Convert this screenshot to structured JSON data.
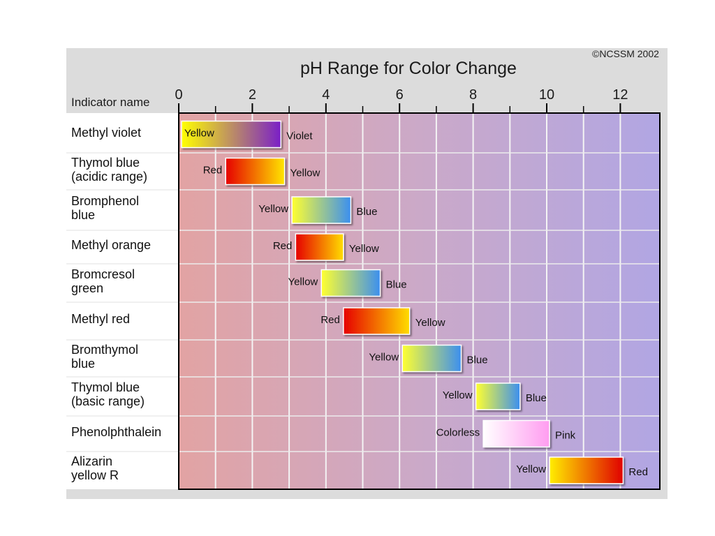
{
  "chart_data": {
    "type": "bar",
    "title": "pH Range for Color Change",
    "copyright": "©NCSSM 2002",
    "ylabel": "Indicator name",
    "xlim": [
      0,
      13
    ],
    "x_ticks": [
      0,
      2,
      4,
      6,
      8,
      10,
      12
    ],
    "grid": true,
    "indicators": [
      {
        "name": "Methyl violet",
        "low": 0.0,
        "high": 2.7,
        "low_color": "Yellow",
        "high_color": "Violet",
        "colors": [
          "#ffff00",
          "#7a1fc8"
        ],
        "low_inside": true
      },
      {
        "name": "Thymol blue\n(acidic range)",
        "low": 1.2,
        "high": 2.8,
        "low_color": "Red",
        "high_color": "Yellow",
        "colors": [
          "#e60000",
          "#ffe600"
        ]
      },
      {
        "name": "Bromphenol\nblue",
        "low": 3.0,
        "high": 4.6,
        "low_color": "Yellow",
        "high_color": "Blue",
        "colors": [
          "#ffff30",
          "#3b8ff0"
        ]
      },
      {
        "name": "Methyl orange",
        "low": 3.1,
        "high": 4.4,
        "low_color": "Red",
        "high_color": "Yellow",
        "colors": [
          "#e60000",
          "#ffdd00"
        ]
      },
      {
        "name": "Bromcresol\ngreen",
        "low": 3.8,
        "high": 5.4,
        "low_color": "Yellow",
        "high_color": "Blue",
        "colors": [
          "#ffff30",
          "#3b8ff0"
        ]
      },
      {
        "name": "Methyl red",
        "low": 4.4,
        "high": 6.2,
        "low_color": "Red",
        "high_color": "Yellow",
        "colors": [
          "#e60000",
          "#ffdd00"
        ]
      },
      {
        "name": "Bromthymol\nblue",
        "low": 6.0,
        "high": 7.6,
        "low_color": "Yellow",
        "high_color": "Blue",
        "colors": [
          "#ffff30",
          "#3b8ff0"
        ]
      },
      {
        "name": "Thymol blue\n(basic range)",
        "low": 8.0,
        "high": 9.2,
        "low_color": "Yellow",
        "high_color": "Blue",
        "colors": [
          "#ffff30",
          "#3b8ff0"
        ]
      },
      {
        "name": "Phenolphthalein",
        "low": 8.2,
        "high": 10.0,
        "low_color": "Colorless",
        "high_color": "Pink",
        "colors": [
          "#ffffff",
          "#ff9cf0"
        ]
      },
      {
        "name": "Alizarin\nyellow R",
        "low": 10.0,
        "high": 12.0,
        "low_color": "Yellow",
        "high_color": "Red",
        "colors": [
          "#ffee00",
          "#e00000"
        ]
      }
    ],
    "background_gradient": [
      "#e2a3a3",
      "#cba9c8",
      "#b1a6e3"
    ]
  }
}
